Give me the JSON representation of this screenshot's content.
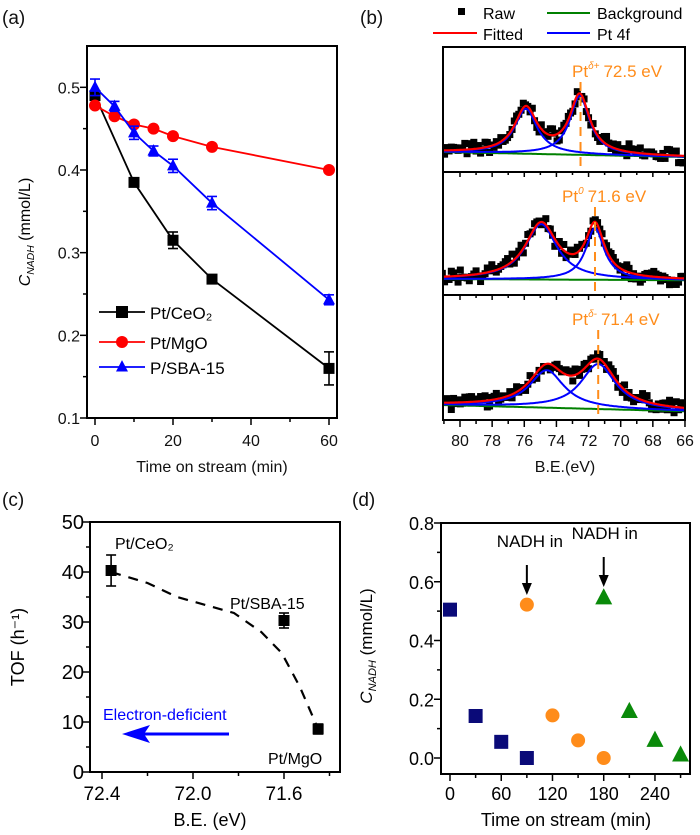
{
  "chart_data": [
    {
      "panel_label": "(a)",
      "type": "line",
      "xlabel": "Time on stream (min)",
      "ylabel": {
        "main": "C",
        "sub": "NADH",
        "rest": " (mmol/L)"
      },
      "xlim": [
        -2,
        62
      ],
      "ylim": [
        0.1,
        0.55
      ],
      "xtick_labels": [
        "0",
        "20",
        "40",
        "60"
      ],
      "ytick_labels": [
        "0.1",
        "0.2",
        "0.3",
        "0.4",
        "0.5"
      ],
      "legend_position": "bottom-left",
      "series": [
        {
          "name": "Pt/CeO₂",
          "color": "#000000",
          "marker": "square",
          "x": [
            0,
            10,
            20,
            30,
            60
          ],
          "y": [
            0.49,
            0.385,
            0.315,
            0.268,
            0.16
          ],
          "err": [
            0,
            0,
            0.01,
            0,
            0.02
          ]
        },
        {
          "name": "Pt/MgO",
          "color": "#ff0000",
          "marker": "circle",
          "x": [
            0,
            5,
            10,
            15,
            20,
            30,
            60
          ],
          "y": [
            0.478,
            0.465,
            0.455,
            0.45,
            0.441,
            0.428,
            0.4
          ],
          "err": [
            0,
            0,
            0,
            0,
            0,
            0,
            0
          ]
        },
        {
          "name": "P/SBA-15",
          "color": "#0000ff",
          "marker": "triangle",
          "x": [
            0,
            5,
            10,
            15,
            20,
            30,
            60
          ],
          "y": [
            0.5,
            0.477,
            0.445,
            0.423,
            0.405,
            0.36,
            0.243
          ],
          "err": [
            0.01,
            0.006,
            0.008,
            0.006,
            0.008,
            0.008,
            0.006
          ]
        }
      ]
    },
    {
      "panel_label": "(b)",
      "type": "line",
      "xlabel": "B.E.(eV)",
      "xlim": [
        81.1,
        66
      ],
      "x_reversed": true,
      "xtick_labels": [
        "80",
        "78",
        "76",
        "74",
        "72",
        "70",
        "68",
        "66"
      ],
      "legend": [
        {
          "name": "Raw",
          "color": "#000000",
          "marker": "square"
        },
        {
          "name": "Background",
          "color": "#008000"
        },
        {
          "name": "Fitted",
          "color": "#ff0000"
        },
        {
          "name": "Pt 4f",
          "color": "#0000ff"
        }
      ],
      "annotation_color": "#ff8c1a",
      "subpanels": [
        {
          "label_prefix": "Pt",
          "label_sup": "δ+",
          "label_value": "72.5 eV",
          "marker_x": 72.5,
          "background": [
            0.16,
            0.12
          ],
          "peaks": [
            {
              "center": 75.9,
              "amplitude": 0.36,
              "hwhm": 0.85
            },
            {
              "center": 72.55,
              "amplitude": 0.47,
              "hwhm": 0.75
            }
          ]
        },
        {
          "label_prefix": "Pt",
          "label_sup": "0",
          "label_value": "71.6 eV",
          "marker_x": 71.6,
          "background": [
            0.13,
            0.12
          ],
          "peaks": [
            {
              "center": 74.95,
              "amplitude": 0.45,
              "hwhm": 1.2
            },
            {
              "center": 71.6,
              "amplitude": 0.42,
              "hwhm": 0.7
            }
          ]
        },
        {
          "label_prefix": "Pt",
          "label_sup": "δ-",
          "label_value": "71.4 eV",
          "marker_x": 71.4,
          "background": [
            0.12,
            0.07
          ],
          "peaks": [
            {
              "center": 74.6,
              "amplitude": 0.3,
              "hwhm": 1.3
            },
            {
              "center": 71.4,
              "amplitude": 0.36,
              "hwhm": 1.3
            }
          ]
        }
      ]
    },
    {
      "panel_label": "(c)",
      "type": "scatter",
      "xlabel": "B.E. (eV)",
      "ylabel": "TOF (h⁻¹)",
      "xlim": [
        72.45,
        71.35
      ],
      "x_reversed": true,
      "ylim": [
        0,
        50
      ],
      "xtick_labels": [
        "72.4",
        "72.0",
        "71.6"
      ],
      "ytick_labels": [
        "0",
        "10",
        "20",
        "30",
        "40",
        "50"
      ],
      "points": [
        {
          "label": "Pt/CeO₂",
          "x": 72.36,
          "y": 40.3,
          "err": 3.1
        },
        {
          "label": "Pt/SBA-15",
          "x": 71.6,
          "y": 30.3,
          "err": 1.5
        },
        {
          "label": "Pt/MgO",
          "x": 71.45,
          "y": 8.6,
          "err": 1.0
        }
      ],
      "trend_line": {
        "x": [
          72.36,
          72.2,
          72.07,
          71.82,
          71.7,
          71.61,
          71.53,
          71.45
        ],
        "y": [
          40.0,
          37.8,
          35.0,
          31.8,
          28.0,
          23.8,
          17.0,
          8.6
        ]
      },
      "arrow_label": "Electron-deficient",
      "arrow_color": "#0000ff"
    },
    {
      "panel_label": "(d)",
      "type": "scatter",
      "xlabel": "Time on stream (min)",
      "ylabel": {
        "main": "C",
        "sub": "NADH",
        "rest": " (mmol/L)"
      },
      "xlim": [
        -10,
        281
      ],
      "ylim": [
        -0.055,
        0.8
      ],
      "xtick_labels": [
        "0",
        "60",
        "120",
        "180",
        "240"
      ],
      "ytick_labels": [
        "0.0",
        "0.2",
        "0.4",
        "0.6",
        "0.8"
      ],
      "series": [
        {
          "color": "#0a0a78",
          "marker": "square",
          "x": [
            0,
            30,
            60,
            90
          ],
          "y": [
            0.505,
            0.143,
            0.055,
            0.0
          ]
        },
        {
          "color": "#ff8c1a",
          "marker": "circle",
          "x": [
            90,
            120,
            150,
            180
          ],
          "y": [
            0.522,
            0.145,
            0.06,
            0.0
          ]
        },
        {
          "color": "#0a8a0a",
          "marker": "triangle",
          "x": [
            180,
            210,
            240,
            270
          ],
          "y": [
            0.545,
            0.158,
            0.06,
            0.01
          ]
        }
      ],
      "annotations": [
        {
          "text": "NADH in",
          "x": 90
        },
        {
          "text": "NADH in",
          "x": 180
        }
      ]
    }
  ]
}
